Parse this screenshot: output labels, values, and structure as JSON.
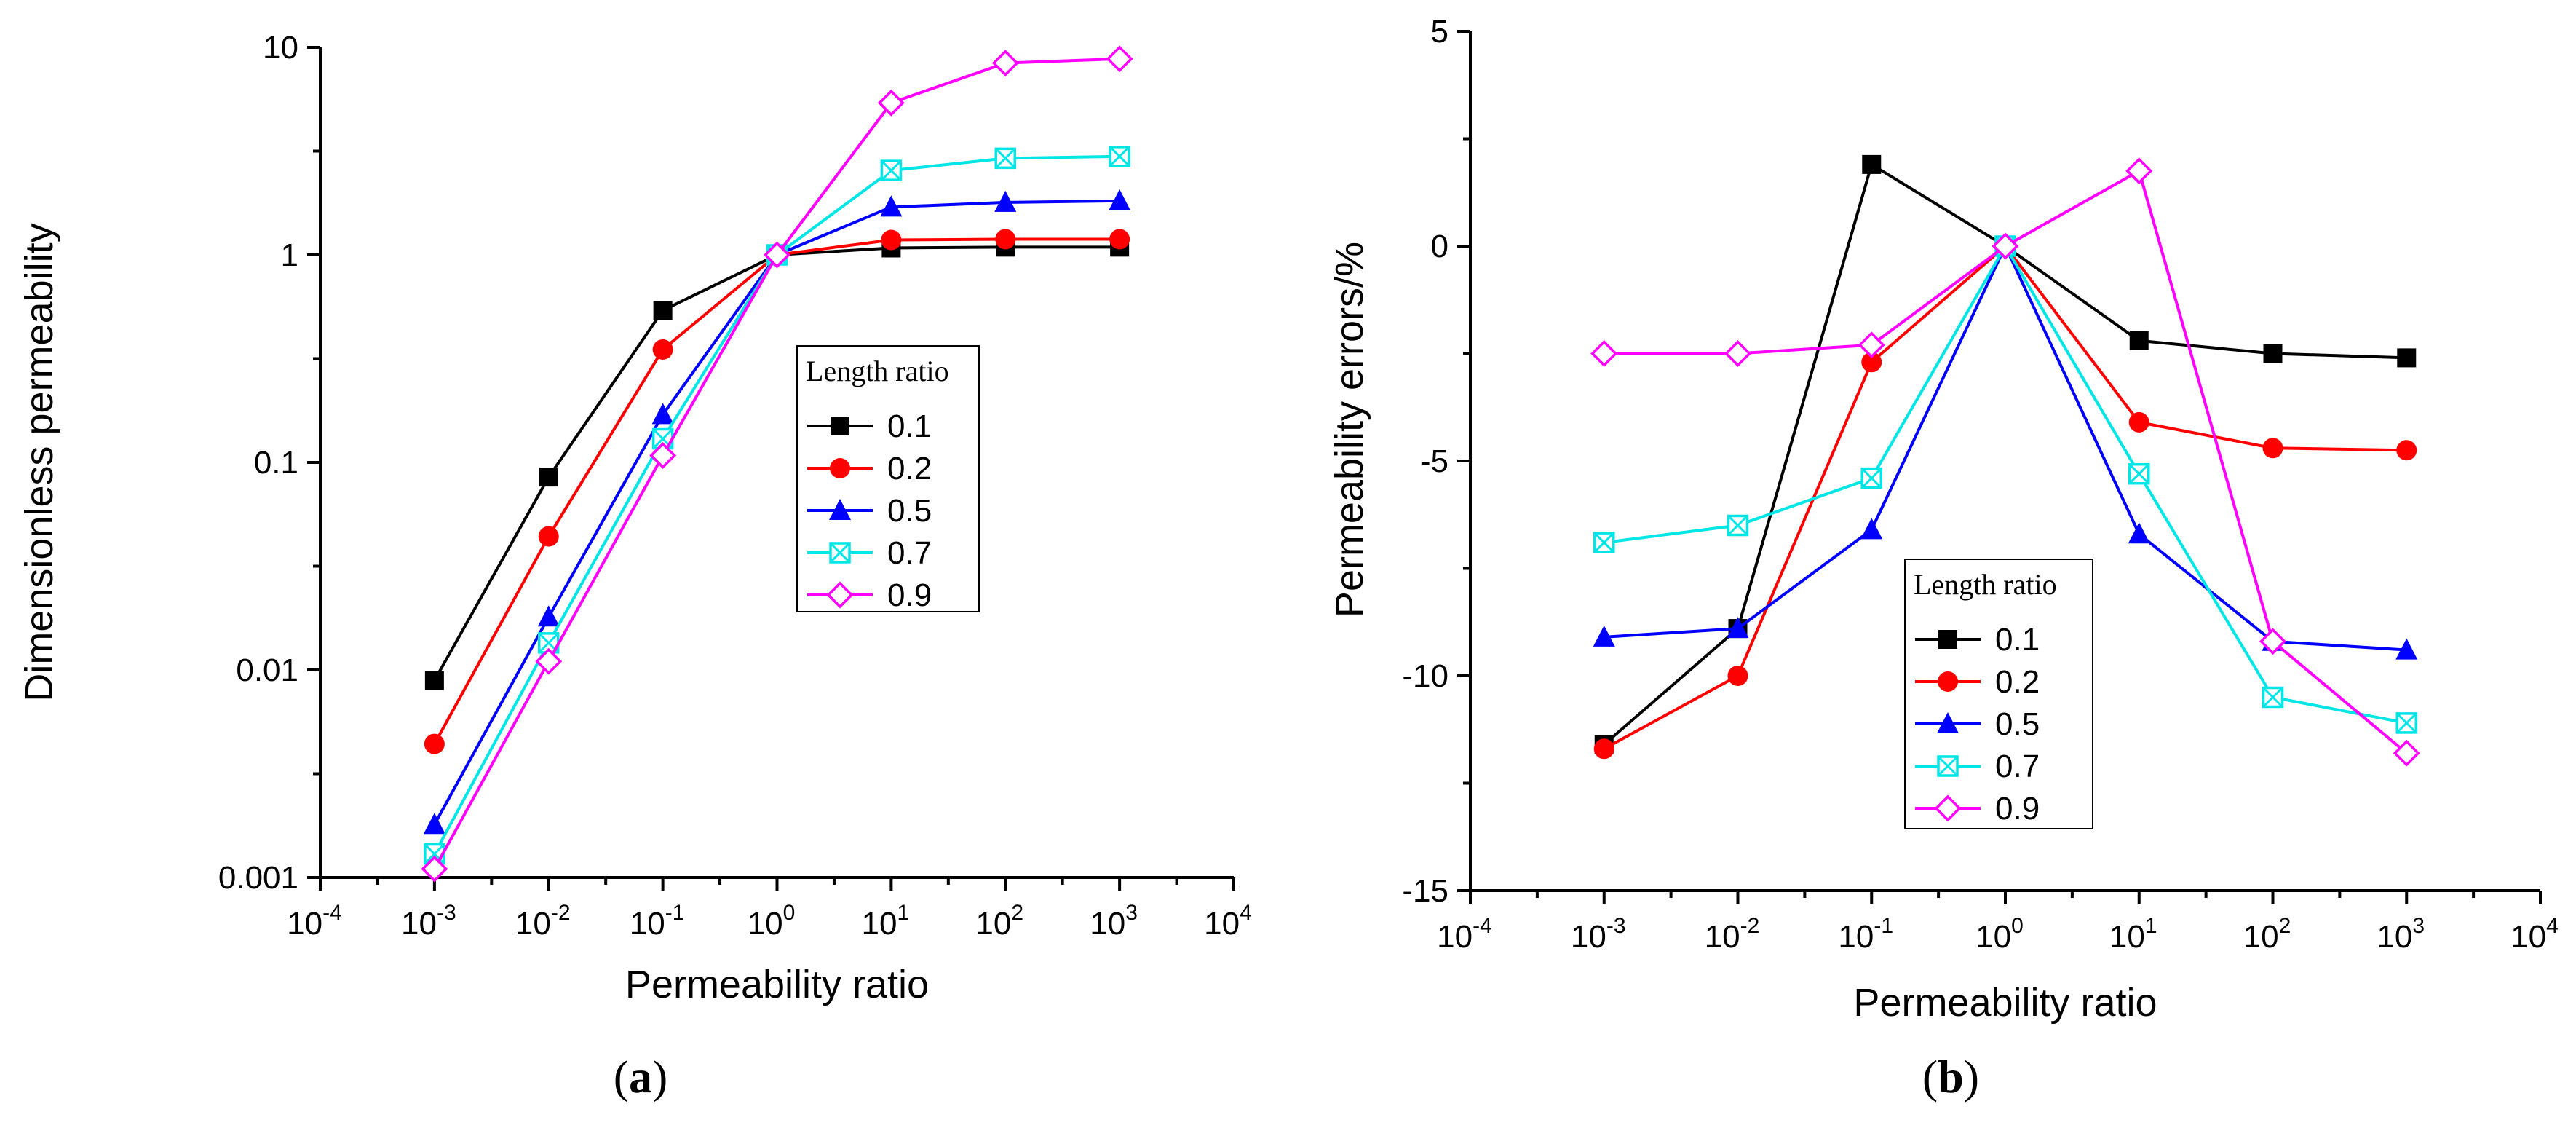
{
  "chart_data": [
    {
      "type": "line",
      "panel_label": "a",
      "xlabel": "Permeability ratio",
      "ylabel": "Dimensionless permeability",
      "xscale": "log",
      "yscale": "log",
      "xlim": [
        0.0001,
        10000
      ],
      "ylim": [
        0.001,
        10
      ],
      "x_ticks": [
        {
          "base": "10",
          "exp": "-4"
        },
        {
          "base": "10",
          "exp": "-3"
        },
        {
          "base": "10",
          "exp": "-2"
        },
        {
          "base": "10",
          "exp": "-1"
        },
        {
          "base": "10",
          "exp": "0"
        },
        {
          "base": "10",
          "exp": "1"
        },
        {
          "base": "10",
          "exp": "2"
        },
        {
          "base": "10",
          "exp": "3"
        },
        {
          "base": "10",
          "exp": "4"
        }
      ],
      "y_ticks": [
        "0.001",
        "0.01",
        "0.1",
        "1",
        "10"
      ],
      "legend_title": "Length ratio",
      "legend_position": "center-right",
      "x": [
        0.001,
        0.01,
        0.1,
        1,
        10,
        100,
        1000
      ],
      "series": [
        {
          "name": "0.1",
          "color": "#000000",
          "marker": "filled-square",
          "values": [
            0.0089,
            0.085,
            0.54,
            1.0,
            1.08,
            1.09,
            1.09
          ]
        },
        {
          "name": "0.2",
          "color": "#ff0000",
          "marker": "filled-circle",
          "values": [
            0.0044,
            0.044,
            0.35,
            1.0,
            1.18,
            1.19,
            1.19
          ]
        },
        {
          "name": "0.5",
          "color": "#0000ff",
          "marker": "filled-triangle",
          "values": [
            0.0018,
            0.018,
            0.17,
            1.0,
            1.7,
            1.79,
            1.82
          ]
        },
        {
          "name": "0.7",
          "color": "#00e5e5",
          "marker": "crossed-square",
          "values": [
            0.0013,
            0.0135,
            0.13,
            1.0,
            2.55,
            2.92,
            2.98
          ]
        },
        {
          "name": "0.9",
          "color": "#ff00ff",
          "marker": "open-diamond",
          "values": [
            0.0011,
            0.011,
            0.108,
            1.0,
            5.4,
            8.4,
            8.8
          ]
        }
      ]
    },
    {
      "type": "line",
      "panel_label": "b",
      "xlabel": "Permeability ratio",
      "ylabel": "Permeability errors/%",
      "xscale": "log",
      "yscale": "linear",
      "xlim": [
        0.0001,
        10000
      ],
      "ylim": [
        -15,
        5
      ],
      "x_ticks": [
        {
          "base": "10",
          "exp": "-4"
        },
        {
          "base": "10",
          "exp": "-3"
        },
        {
          "base": "10",
          "exp": "-2"
        },
        {
          "base": "10",
          "exp": "-1"
        },
        {
          "base": "10",
          "exp": "0"
        },
        {
          "base": "10",
          "exp": "1"
        },
        {
          "base": "10",
          "exp": "2"
        },
        {
          "base": "10",
          "exp": "3"
        },
        {
          "base": "10",
          "exp": "4"
        }
      ],
      "y_ticks": [
        "-15",
        "-10",
        "-5",
        "0",
        "5"
      ],
      "legend_title": "Length ratio",
      "legend_position": "lower-center",
      "x": [
        0.001,
        0.01,
        0.1,
        1,
        10,
        100,
        1000
      ],
      "series": [
        {
          "name": "0.1",
          "color": "#000000",
          "marker": "filled-square",
          "values": [
            -11.6,
            -8.9,
            1.9,
            0,
            -2.2,
            -2.5,
            -2.6
          ]
        },
        {
          "name": "0.2",
          "color": "#ff0000",
          "marker": "filled-circle",
          "values": [
            -11.7,
            -10.0,
            -2.7,
            0,
            -4.1,
            -4.7,
            -4.75
          ]
        },
        {
          "name": "0.5",
          "color": "#0000ff",
          "marker": "filled-triangle",
          "values": [
            -9.1,
            -8.9,
            -6.6,
            0,
            -6.7,
            -9.2,
            -9.4
          ]
        },
        {
          "name": "0.7",
          "color": "#00e5e5",
          "marker": "crossed-square",
          "values": [
            -6.9,
            -6.5,
            -5.4,
            0,
            -5.3,
            -10.5,
            -11.1
          ]
        },
        {
          "name": "0.9",
          "color": "#ff00ff",
          "marker": "open-diamond",
          "values": [
            -2.5,
            -2.5,
            -2.3,
            0,
            1.75,
            -9.2,
            -11.8
          ]
        }
      ]
    }
  ]
}
